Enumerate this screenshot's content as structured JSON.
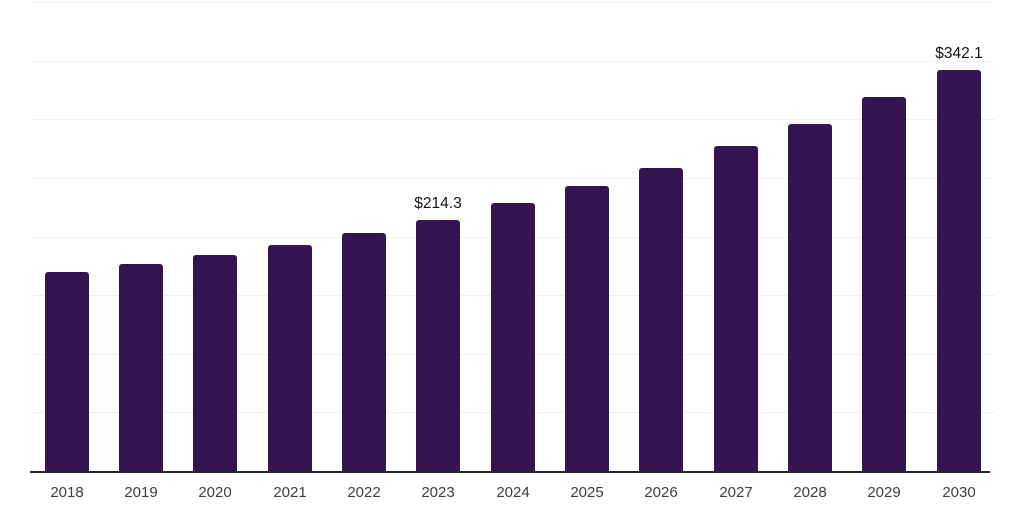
{
  "chart_data": {
    "type": "bar",
    "title": "",
    "xlabel": "",
    "ylabel": "",
    "categories": [
      "2018",
      "2019",
      "2020",
      "2021",
      "2022",
      "2023",
      "2024",
      "2025",
      "2026",
      "2027",
      "2028",
      "2029",
      "2030"
    ],
    "values": [
      169.5,
      177.0,
      184.5,
      193.0,
      203.0,
      214.3,
      228.9,
      243.5,
      258.5,
      277.5,
      296.0,
      319.0,
      342.1
    ],
    "value_labels": [
      {
        "category": "2023",
        "index": 5,
        "text": "$214.3"
      },
      {
        "category": "2030",
        "index": 12,
        "text": "$342.1"
      }
    ],
    "ylim": [
      0,
      400
    ],
    "gridline_step": 50,
    "grid": "horizontal-only",
    "y_tick_labels_visible": false,
    "legend": "none",
    "bar_color": "#341551",
    "axis_line_color": "#26262b",
    "gridline_color": "#f0f0f1",
    "tick_label_color": "#3b3e42",
    "value_label_color": "#141418",
    "background_color": "#ffffff"
  }
}
